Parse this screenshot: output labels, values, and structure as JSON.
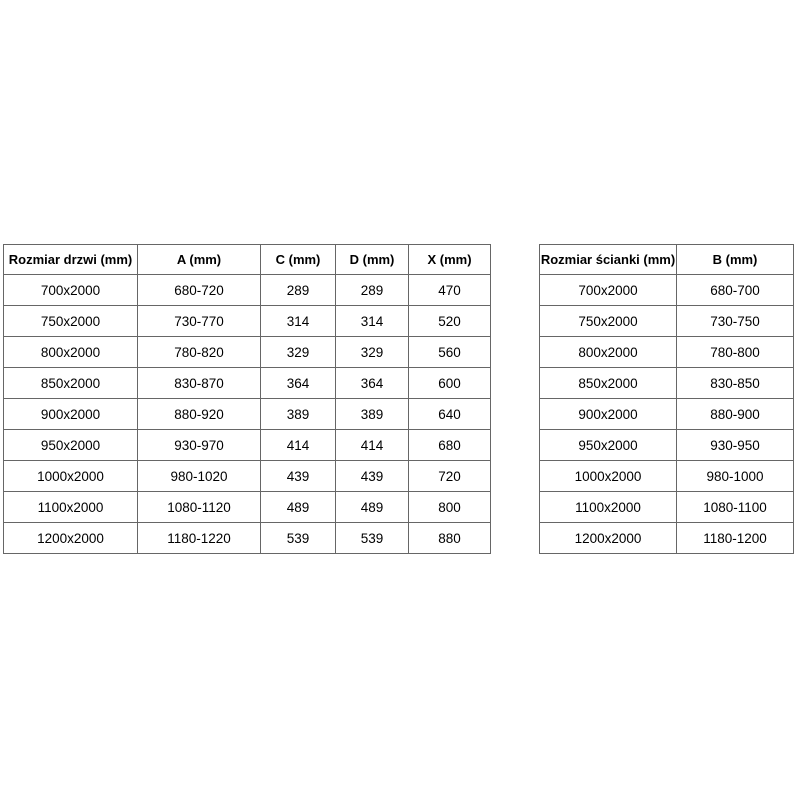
{
  "page": {
    "background_color": "#ffffff",
    "table_border_color": "#666666",
    "text_color": "#000000"
  },
  "chart_data": [
    {
      "type": "table",
      "name": "door-dimensions",
      "columns": [
        "Rozmiar drzwi (mm)",
        "A (mm)",
        "C (mm)",
        "D (mm)",
        "X (mm)"
      ],
      "rows": [
        [
          "700x2000",
          "680-720",
          "289",
          "289",
          "470"
        ],
        [
          "750x2000",
          "730-770",
          "314",
          "314",
          "520"
        ],
        [
          "800x2000",
          "780-820",
          "329",
          "329",
          "560"
        ],
        [
          "850x2000",
          "830-870",
          "364",
          "364",
          "600"
        ],
        [
          "900x2000",
          "880-920",
          "389",
          "389",
          "640"
        ],
        [
          "950x2000",
          "930-970",
          "414",
          "414",
          "680"
        ],
        [
          "1000x2000",
          "980-1020",
          "439",
          "439",
          "720"
        ],
        [
          "1100x2000",
          "1080-1120",
          "489",
          "489",
          "800"
        ],
        [
          "1200x2000",
          "1180-1220",
          "539",
          "539",
          "880"
        ]
      ]
    },
    {
      "type": "table",
      "name": "wall-dimensions",
      "columns": [
        "Rozmiar ścianki (mm)",
        "B (mm)"
      ],
      "rows": [
        [
          "700x2000",
          "680-700"
        ],
        [
          "750x2000",
          "730-750"
        ],
        [
          "800x2000",
          "780-800"
        ],
        [
          "850x2000",
          "830-850"
        ],
        [
          "900x2000",
          "880-900"
        ],
        [
          "950x2000",
          "930-950"
        ],
        [
          "1000x2000",
          "980-1000"
        ],
        [
          "1100x2000",
          "1080-1100"
        ],
        [
          "1200x2000",
          "1180-1200"
        ]
      ]
    }
  ]
}
